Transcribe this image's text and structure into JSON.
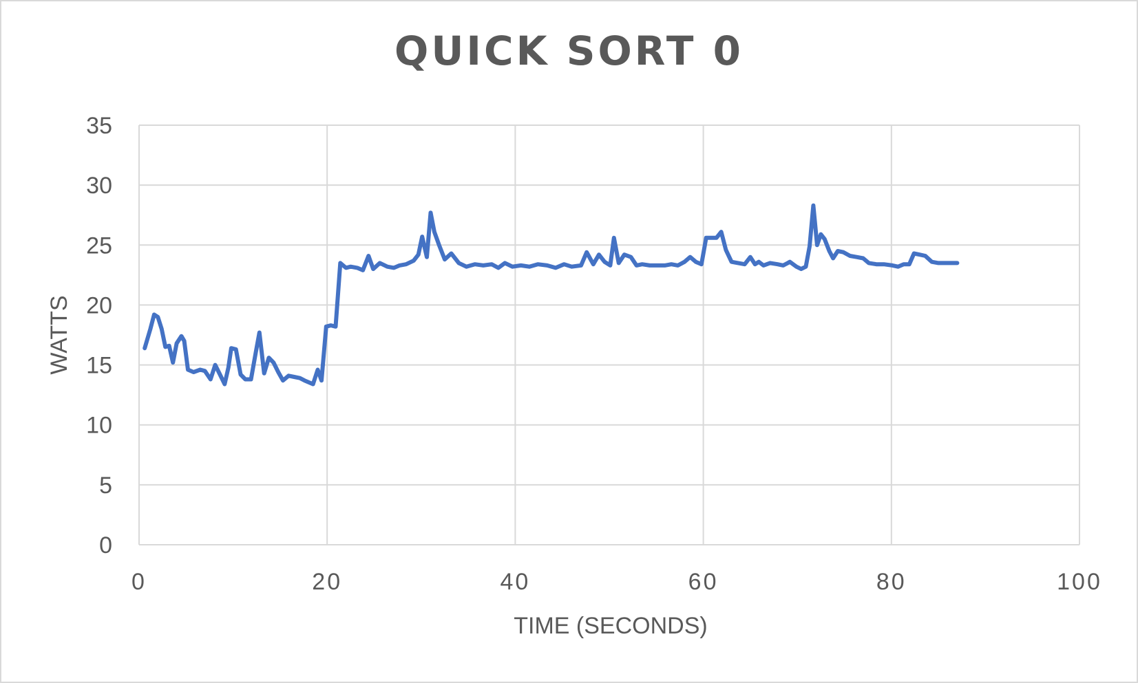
{
  "chart_data": {
    "type": "line",
    "title": "QUICK SORT 0",
    "xlabel": "TIME (SECONDS)",
    "ylabel": "WATTS",
    "xlim": [
      0,
      100
    ],
    "ylim": [
      0,
      35
    ],
    "x_ticks": [
      0,
      20,
      40,
      60,
      80,
      100
    ],
    "y_ticks": [
      0,
      5,
      10,
      15,
      20,
      25,
      30,
      35
    ],
    "grid": true,
    "legend": "none",
    "series": [
      {
        "color": "#4472c4",
        "points": [
          [
            0.6,
            16.4
          ],
          [
            1.2,
            18.0
          ],
          [
            1.6,
            19.2
          ],
          [
            2.0,
            19.0
          ],
          [
            2.4,
            18.0
          ],
          [
            2.8,
            16.5
          ],
          [
            3.2,
            16.6
          ],
          [
            3.6,
            15.2
          ],
          [
            4.0,
            16.8
          ],
          [
            4.5,
            17.4
          ],
          [
            4.8,
            17.0
          ],
          [
            5.2,
            14.6
          ],
          [
            5.8,
            14.4
          ],
          [
            6.5,
            14.6
          ],
          [
            7.0,
            14.5
          ],
          [
            7.6,
            13.8
          ],
          [
            8.1,
            15.0
          ],
          [
            8.6,
            14.2
          ],
          [
            9.1,
            13.4
          ],
          [
            9.5,
            14.8
          ],
          [
            9.8,
            16.4
          ],
          [
            10.3,
            16.3
          ],
          [
            10.8,
            14.2
          ],
          [
            11.3,
            13.8
          ],
          [
            11.9,
            13.8
          ],
          [
            12.4,
            16.0
          ],
          [
            12.8,
            17.7
          ],
          [
            13.3,
            14.3
          ],
          [
            13.8,
            15.6
          ],
          [
            14.3,
            15.2
          ],
          [
            14.8,
            14.4
          ],
          [
            15.3,
            13.7
          ],
          [
            15.9,
            14.1
          ],
          [
            16.5,
            14.0
          ],
          [
            17.1,
            13.9
          ],
          [
            17.6,
            13.7
          ],
          [
            18.2,
            13.5
          ],
          [
            18.5,
            13.4
          ],
          [
            19.0,
            14.6
          ],
          [
            19.4,
            13.7
          ],
          [
            19.9,
            18.2
          ],
          [
            20.4,
            18.3
          ],
          [
            20.9,
            18.2
          ],
          [
            21.4,
            23.5
          ],
          [
            22.0,
            23.1
          ],
          [
            22.5,
            23.2
          ],
          [
            23.2,
            23.1
          ],
          [
            23.8,
            22.9
          ],
          [
            24.4,
            24.1
          ],
          [
            24.9,
            23.0
          ],
          [
            25.6,
            23.5
          ],
          [
            26.4,
            23.2
          ],
          [
            27.1,
            23.1
          ],
          [
            27.7,
            23.3
          ],
          [
            28.4,
            23.4
          ],
          [
            29.2,
            23.7
          ],
          [
            29.7,
            24.2
          ],
          [
            30.1,
            25.7
          ],
          [
            30.6,
            24.0
          ],
          [
            31.0,
            27.7
          ],
          [
            31.4,
            26.1
          ],
          [
            31.9,
            25.0
          ],
          [
            32.5,
            23.8
          ],
          [
            33.2,
            24.3
          ],
          [
            34.0,
            23.5
          ],
          [
            34.8,
            23.2
          ],
          [
            35.7,
            23.4
          ],
          [
            36.6,
            23.3
          ],
          [
            37.5,
            23.4
          ],
          [
            38.2,
            23.1
          ],
          [
            38.9,
            23.5
          ],
          [
            39.7,
            23.2
          ],
          [
            40.6,
            23.3
          ],
          [
            41.5,
            23.2
          ],
          [
            42.4,
            23.4
          ],
          [
            43.4,
            23.3
          ],
          [
            44.3,
            23.1
          ],
          [
            45.2,
            23.4
          ],
          [
            46.0,
            23.2
          ],
          [
            47.0,
            23.3
          ],
          [
            47.6,
            24.4
          ],
          [
            48.3,
            23.4
          ],
          [
            48.9,
            24.2
          ],
          [
            49.5,
            23.6
          ],
          [
            50.1,
            23.3
          ],
          [
            50.5,
            25.6
          ],
          [
            51.0,
            23.5
          ],
          [
            51.6,
            24.2
          ],
          [
            52.3,
            24.0
          ],
          [
            52.9,
            23.3
          ],
          [
            53.5,
            23.4
          ],
          [
            54.3,
            23.3
          ],
          [
            55.1,
            23.3
          ],
          [
            55.9,
            23.3
          ],
          [
            56.6,
            23.4
          ],
          [
            57.3,
            23.3
          ],
          [
            58.0,
            23.6
          ],
          [
            58.6,
            24.0
          ],
          [
            59.2,
            23.6
          ],
          [
            59.8,
            23.4
          ],
          [
            60.3,
            25.6
          ],
          [
            60.9,
            25.6
          ],
          [
            61.4,
            25.6
          ],
          [
            61.9,
            26.1
          ],
          [
            62.4,
            24.6
          ],
          [
            63.0,
            23.6
          ],
          [
            63.7,
            23.5
          ],
          [
            64.4,
            23.4
          ],
          [
            65.0,
            24.0
          ],
          [
            65.5,
            23.4
          ],
          [
            65.9,
            23.6
          ],
          [
            66.4,
            23.3
          ],
          [
            67.1,
            23.5
          ],
          [
            67.9,
            23.4
          ],
          [
            68.5,
            23.3
          ],
          [
            69.2,
            23.6
          ],
          [
            69.9,
            23.2
          ],
          [
            70.4,
            23.0
          ],
          [
            70.9,
            23.2
          ],
          [
            71.3,
            24.9
          ],
          [
            71.7,
            28.3
          ],
          [
            72.1,
            25.0
          ],
          [
            72.5,
            25.9
          ],
          [
            72.9,
            25.5
          ],
          [
            73.4,
            24.5
          ],
          [
            73.8,
            23.9
          ],
          [
            74.3,
            24.5
          ],
          [
            74.9,
            24.4
          ],
          [
            75.6,
            24.1
          ],
          [
            76.3,
            24.0
          ],
          [
            77.0,
            23.9
          ],
          [
            77.6,
            23.5
          ],
          [
            78.4,
            23.4
          ],
          [
            79.2,
            23.4
          ],
          [
            80.1,
            23.3
          ],
          [
            80.7,
            23.2
          ],
          [
            81.3,
            23.4
          ],
          [
            81.9,
            23.4
          ],
          [
            82.4,
            24.3
          ],
          [
            83.0,
            24.2
          ],
          [
            83.6,
            24.1
          ],
          [
            84.3,
            23.6
          ],
          [
            85.0,
            23.5
          ],
          [
            85.6,
            23.5
          ],
          [
            86.3,
            23.5
          ],
          [
            87.0,
            23.5
          ]
        ]
      }
    ]
  }
}
